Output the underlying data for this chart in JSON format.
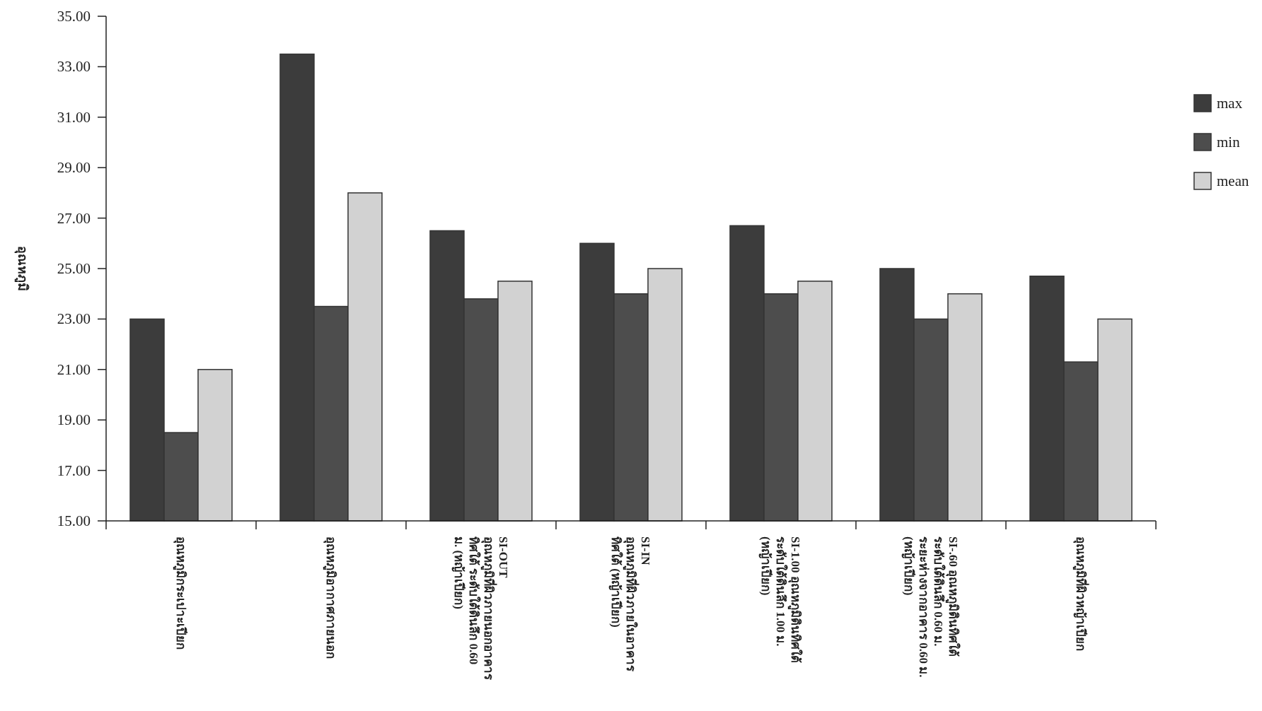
{
  "chart_data": {
    "type": "bar",
    "ylabel": "อุณหภูมิ",
    "categories": [
      "อุณหภูมิกระเปาะเปียก",
      "อุณหภูมิอากาศภายนอก",
      "SI-OUT\nอุณหภูมิที่ผิวภายนอกอาคาร\nทิศใต้ ระดับใต้ดินลึก 0.60\nม. (หญ้าเปียก)",
      "SI-IN\nอุณหภูมิที่ผิวภายในอาคาร\nทิศใต้ (หญ้าเปียก)",
      "SI-1.00 อุณหภูมิดินทิศใต้\nระดับใต้ดินลึก 1.00 ม.\n(หญ้าเปียก)",
      "SI-.60 อุณหภูมิดินทิศใต้\nระดับใต้ดินลึก 0.60 ม.\nระยะห่างจากอาคาร 0.60 ม.\n(หญ้าเปียก)",
      "อุณหภูมิที่ผิวหญ้าเปียก"
    ],
    "series": [
      {
        "name": "max",
        "color": "#3c3c3c",
        "values": [
          23.0,
          33.5,
          26.5,
          26.0,
          26.7,
          25.0,
          24.7
        ]
      },
      {
        "name": "min",
        "color": "#4d4d4d",
        "values": [
          18.5,
          23.5,
          23.8,
          24.0,
          24.0,
          23.0,
          21.3
        ]
      },
      {
        "name": "mean",
        "color": "#d2d2d2",
        "values": [
          21.0,
          28.0,
          24.5,
          25.0,
          24.5,
          24.0,
          23.0
        ]
      }
    ],
    "ylim": [
      15,
      35
    ],
    "yticks": [
      {
        "value": 15,
        "label": "15.00"
      },
      {
        "value": 17,
        "label": "17.00"
      },
      {
        "value": 19,
        "label": "19.00"
      },
      {
        "value": 21,
        "label": "21.00"
      },
      {
        "value": 23,
        "label": "23.00"
      },
      {
        "value": 25,
        "label": "25.00"
      },
      {
        "value": 27,
        "label": "27.00"
      },
      {
        "value": 29,
        "label": "29.00"
      },
      {
        "value": 31,
        "label": "31.00"
      },
      {
        "value": 33,
        "label": "33.00"
      },
      {
        "value": 35,
        "label": "35.00"
      }
    ],
    "grid": false,
    "legend": "top right"
  }
}
